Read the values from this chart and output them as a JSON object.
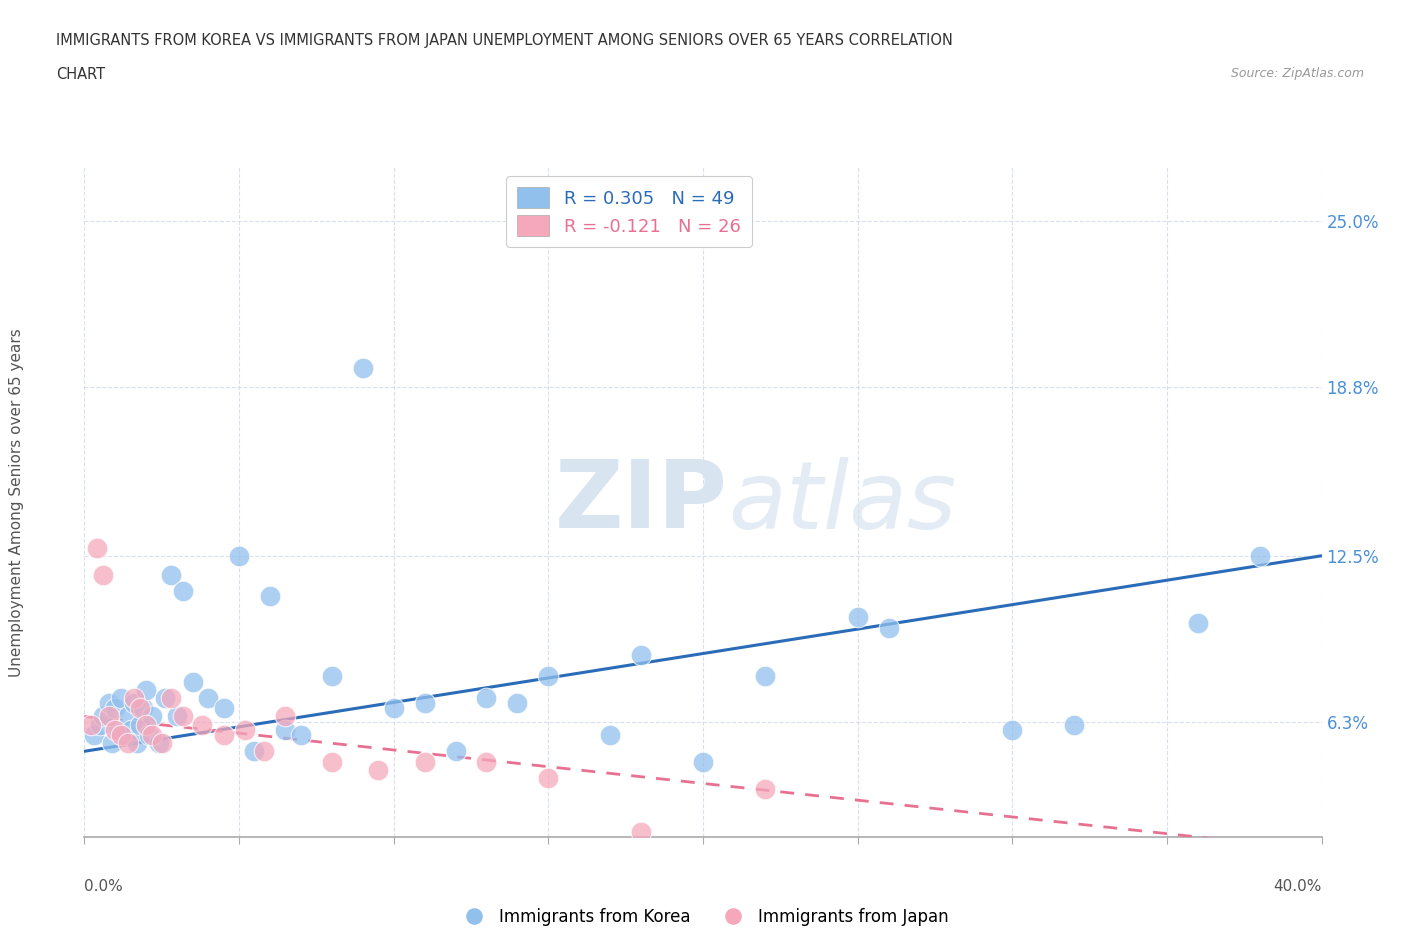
{
  "title_line1": "IMMIGRANTS FROM KOREA VS IMMIGRANTS FROM JAPAN UNEMPLOYMENT AMONG SENIORS OVER 65 YEARS CORRELATION",
  "title_line2": "CHART",
  "source": "Source: ZipAtlas.com",
  "ylabel": "Unemployment Among Seniors over 65 years",
  "xmin": 0.0,
  "xmax": 40.0,
  "ymin": 2.0,
  "ymax": 27.0,
  "ytick_values": [
    6.3,
    12.5,
    18.8,
    25.0
  ],
  "ytick_labels": [
    "6.3%",
    "12.5%",
    "18.8%",
    "25.0%"
  ],
  "korea_color": "#92c0ed",
  "japan_color": "#f5a8bc",
  "korea_line_color": "#2b6cb8",
  "japan_line_color": "#e87090",
  "korea_R": 0.305,
  "korea_N": 49,
  "japan_R": -0.121,
  "japan_N": 26,
  "watermark_zip": "ZIP",
  "watermark_atlas": "atlas",
  "legend_label_korea": "Immigrants from Korea",
  "legend_label_japan": "Immigrants from Japan",
  "korea_x": [
    0.3,
    0.5,
    0.6,
    0.8,
    0.9,
    1.0,
    1.1,
    1.2,
    1.3,
    1.4,
    1.5,
    1.6,
    1.7,
    1.8,
    1.9,
    2.0,
    2.1,
    2.2,
    2.4,
    2.6,
    2.8,
    3.0,
    3.2,
    3.5,
    4.0,
    4.5,
    5.0,
    5.5,
    6.0,
    6.5,
    7.0,
    8.0,
    9.0,
    10.0,
    11.0,
    12.0,
    13.0,
    14.0,
    15.0,
    17.0,
    18.0,
    20.0,
    22.0,
    25.0,
    26.0,
    30.0,
    32.0,
    36.0,
    38.0
  ],
  "korea_y": [
    5.8,
    6.2,
    6.5,
    7.0,
    5.5,
    6.8,
    6.0,
    7.2,
    5.8,
    6.5,
    6.0,
    7.0,
    5.5,
    6.2,
    6.8,
    7.5,
    5.8,
    6.5,
    5.5,
    7.2,
    11.8,
    6.5,
    11.2,
    7.8,
    7.2,
    6.8,
    12.5,
    5.2,
    11.0,
    6.0,
    5.8,
    8.0,
    19.5,
    6.8,
    7.0,
    5.2,
    7.2,
    7.0,
    8.0,
    5.8,
    8.8,
    4.8,
    8.0,
    10.2,
    9.8,
    6.0,
    6.2,
    10.0,
    12.5
  ],
  "japan_x": [
    0.2,
    0.4,
    0.6,
    0.8,
    1.0,
    1.2,
    1.4,
    1.6,
    1.8,
    2.0,
    2.2,
    2.5,
    2.8,
    3.2,
    3.8,
    4.5,
    5.2,
    5.8,
    6.5,
    8.0,
    9.5,
    11.0,
    13.0,
    15.0,
    18.0,
    22.0
  ],
  "japan_y": [
    6.2,
    12.8,
    11.8,
    6.5,
    6.0,
    5.8,
    5.5,
    7.2,
    6.8,
    6.2,
    5.8,
    5.5,
    7.2,
    6.5,
    6.2,
    5.8,
    6.0,
    5.2,
    6.5,
    4.8,
    4.5,
    4.8,
    4.8,
    4.2,
    2.2,
    3.8
  ],
  "korea_trend_x0": 0.0,
  "korea_trend_y0": 5.2,
  "korea_trend_x1": 40.0,
  "korea_trend_y1": 12.5,
  "japan_trend_x0": 0.0,
  "japan_trend_y0": 6.5,
  "japan_trend_x1": 40.0,
  "japan_trend_y1": 1.5
}
